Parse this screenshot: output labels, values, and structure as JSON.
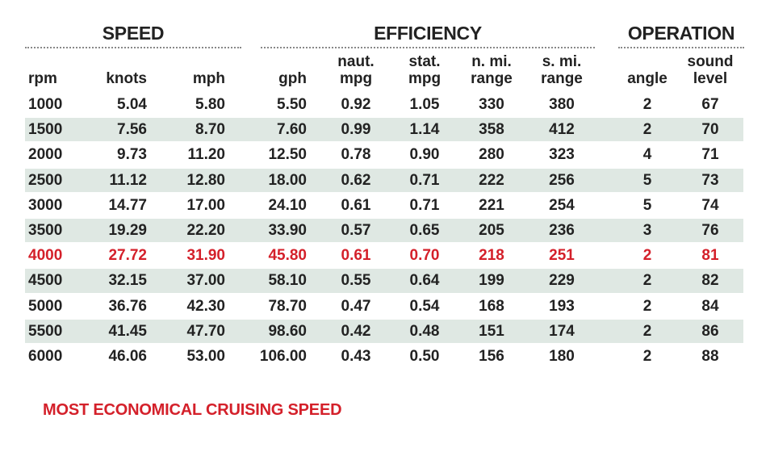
{
  "groups": {
    "speed": "SPEED",
    "efficiency": "EFFICIENCY",
    "operation": "OPERATION"
  },
  "columns": [
    {
      "key": "rpm",
      "label": "rpm"
    },
    {
      "key": "knots",
      "label": "knots"
    },
    {
      "key": "mph",
      "label": "mph"
    },
    {
      "key": "gph",
      "label": "gph"
    },
    {
      "key": "naut_mpg",
      "label": "naut.\nmpg"
    },
    {
      "key": "stat_mpg",
      "label": "stat.\nmpg"
    },
    {
      "key": "n_mi_range",
      "label": "n. mi.\nrange"
    },
    {
      "key": "s_mi_range",
      "label": "s. mi.\nrange"
    },
    {
      "key": "angle",
      "label": "angle"
    },
    {
      "key": "sound_level",
      "label": "sound\nlevel"
    }
  ],
  "rows": [
    [
      "1000",
      "5.04",
      "5.80",
      "5.50",
      "0.92",
      "1.05",
      "330",
      "380",
      "2",
      "67"
    ],
    [
      "1500",
      "7.56",
      "8.70",
      "7.60",
      "0.99",
      "1.14",
      "358",
      "412",
      "2",
      "70"
    ],
    [
      "2000",
      "9.73",
      "11.20",
      "12.50",
      "0.78",
      "0.90",
      "280",
      "323",
      "4",
      "71"
    ],
    [
      "2500",
      "11.12",
      "12.80",
      "18.00",
      "0.62",
      "0.71",
      "222",
      "256",
      "5",
      "73"
    ],
    [
      "3000",
      "14.77",
      "17.00",
      "24.10",
      "0.61",
      "0.71",
      "221",
      "254",
      "5",
      "74"
    ],
    [
      "3500",
      "19.29",
      "22.20",
      "33.90",
      "0.57",
      "0.65",
      "205",
      "236",
      "3",
      "76"
    ],
    [
      "4000",
      "27.72",
      "31.90",
      "45.80",
      "0.61",
      "0.70",
      "218",
      "251",
      "2",
      "81"
    ],
    [
      "4500",
      "32.15",
      "37.00",
      "58.10",
      "0.55",
      "0.64",
      "199",
      "229",
      "2",
      "82"
    ],
    [
      "5000",
      "36.76",
      "42.30",
      "78.70",
      "0.47",
      "0.54",
      "168",
      "193",
      "2",
      "84"
    ],
    [
      "5500",
      "41.45",
      "47.70",
      "98.60",
      "0.42",
      "0.48",
      "151",
      "174",
      "2",
      "86"
    ],
    [
      "6000",
      "46.06",
      "53.00",
      "106.00",
      "0.43",
      "0.50",
      "156",
      "180",
      "2",
      "88"
    ]
  ],
  "highlight_rpm": "4000",
  "highlight_color": "#d4202a",
  "shade_color": "#dfe8e3",
  "note": "MOST ECONOMICAL CRUISING SPEED"
}
